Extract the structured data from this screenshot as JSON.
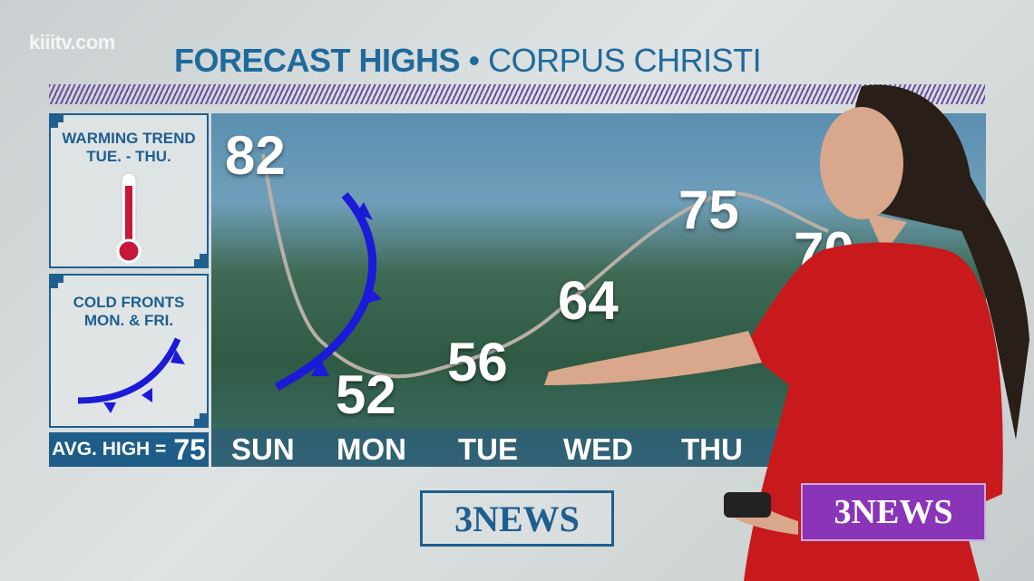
{
  "watermark": "kiiitv.com",
  "title": {
    "main": "FORECAST HIGHS",
    "separator": "•",
    "location": "CORPUS CHRISTI"
  },
  "side_cards": [
    {
      "line1": "WARMING TREND",
      "line2": "TUE. - THU.",
      "icon": "thermometer-icon"
    },
    {
      "line1": "COLD FRONTS",
      "line2": "MON. & FRI.",
      "icon": "cold-front-icon"
    }
  ],
  "avg_high": {
    "label": "AVG. HIGH =",
    "value": "75"
  },
  "forecast": [
    {
      "day": "SUN",
      "high": "82"
    },
    {
      "day": "MON",
      "high": "52"
    },
    {
      "day": "TUE",
      "high": "56"
    },
    {
      "day": "WED",
      "high": "64"
    },
    {
      "day": "THU",
      "high": "75"
    },
    {
      "high": "70"
    }
  ],
  "colors": {
    "brand_blue": "#1e6a9c",
    "cold_front": "#1a1ad8",
    "accent_purple": "#8a35b8",
    "dress_red": "#c8191c"
  },
  "logos": {
    "station": "3NEWS",
    "bug": "3NEWS"
  }
}
